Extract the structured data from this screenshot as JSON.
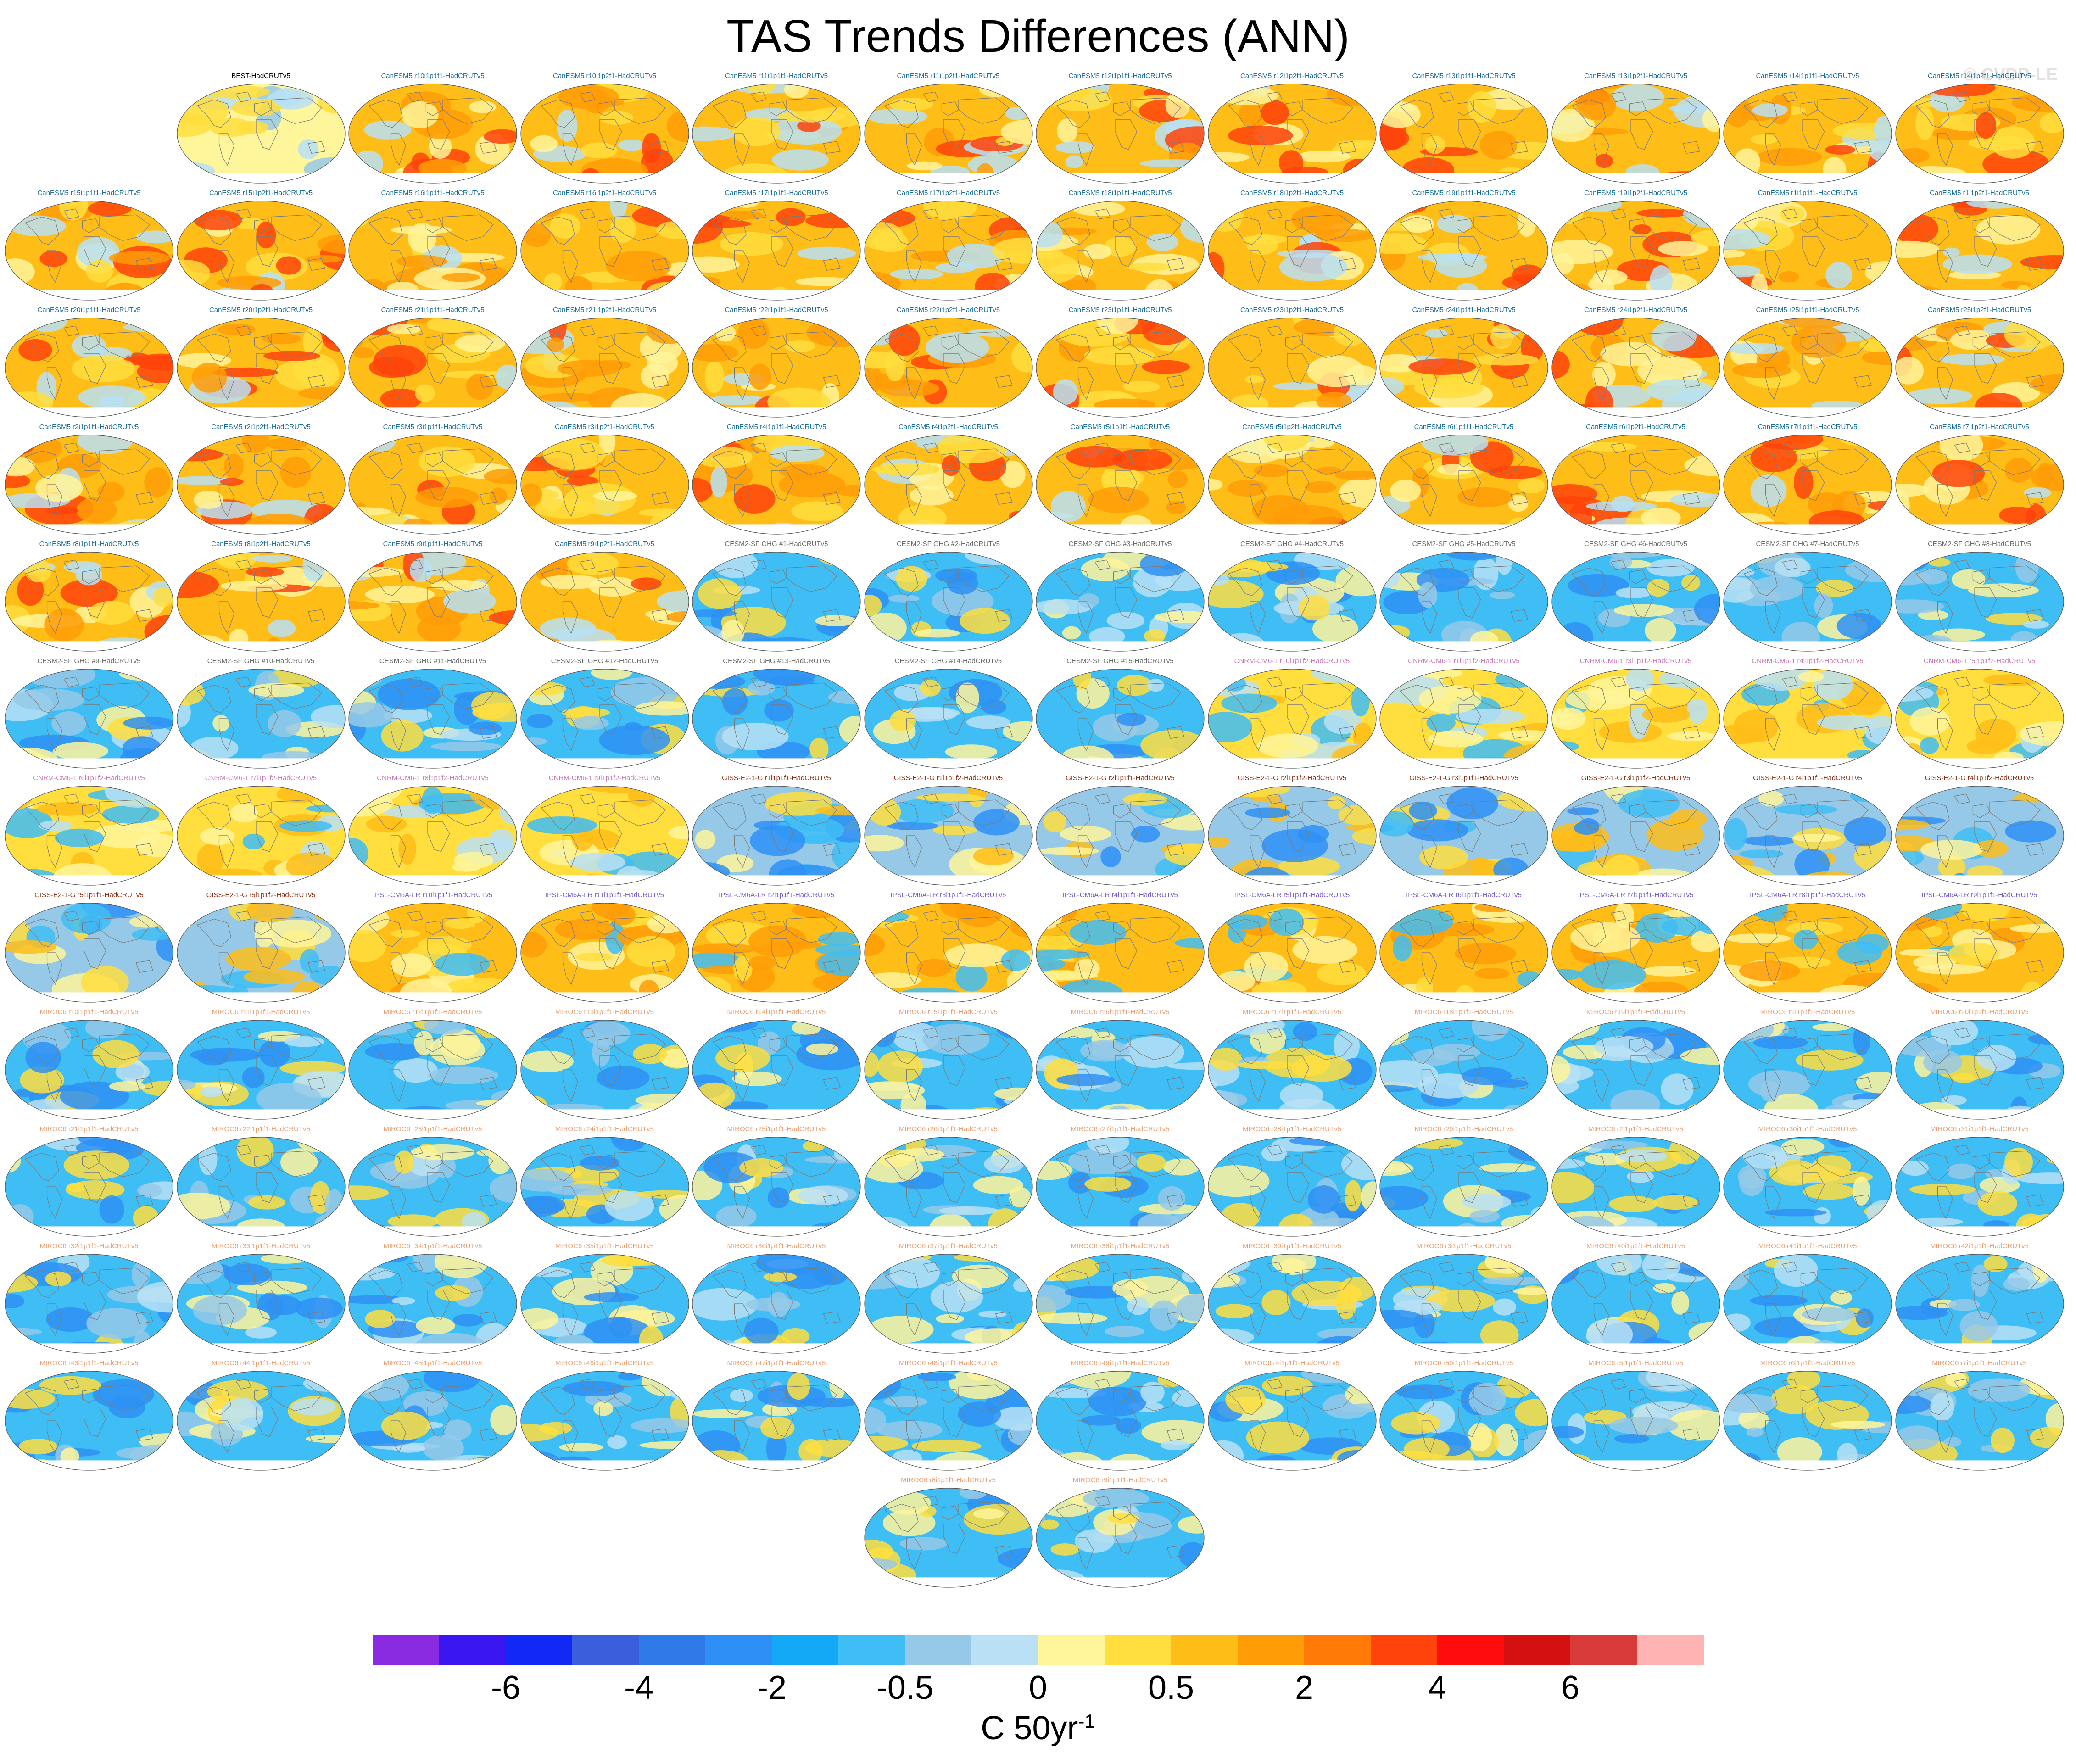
{
  "title": "TAS Trends Differences (ANN)",
  "watermark": "© CVDP-LE",
  "units": {
    "main": "C 50yr",
    "superscript": "-1"
  },
  "chart_data": {
    "type": "heatmap",
    "title": "TAS Trends Differences (ANN)",
    "projection": "global robinson map panels",
    "colorbar": {
      "colors": [
        "#8a2be2",
        "#3a16f0",
        "#1228f5",
        "#3b5fdc",
        "#2f7ae8",
        "#2e90f5",
        "#13a9f7",
        "#3fbdf5",
        "#96c9e8",
        "#b9e0f4",
        "#fff59a",
        "#ffde3e",
        "#ffbd18",
        "#ff9c06",
        "#ff7a06",
        "#ff430a",
        "#ff0c0c",
        "#d41010",
        "#d83a3a",
        "#ffb3b3"
      ],
      "tick_labels": [
        "-6",
        "-4",
        "-2",
        "-0.5",
        "0",
        "0.5",
        "2",
        "4",
        "6"
      ],
      "units": "C 50yr-1"
    },
    "panels": [
      {
        "label": "BEST-HadCRUTv5",
        "group": "best"
      },
      {
        "label": "CanESM5 r10i1p1f1-HadCRUTv5",
        "group": "canesm"
      },
      {
        "label": "CanESM5 r10i1p2f1-HadCRUTv5",
        "group": "canesm"
      },
      {
        "label": "CanESM5 r11i1p1f1-HadCRUTv5",
        "group": "canesm"
      },
      {
        "label": "CanESM5 r11i1p2f1-HadCRUTv5",
        "group": "canesm"
      },
      {
        "label": "CanESM5 r12i1p1f1-HadCRUTv5",
        "group": "canesm"
      },
      {
        "label": "CanESM5 r12i1p2f1-HadCRUTv5",
        "group": "canesm"
      },
      {
        "label": "CanESM5 r13i1p1f1-HadCRUTv5",
        "group": "canesm"
      },
      {
        "label": "CanESM5 r13i1p2f1-HadCRUTv5",
        "group": "canesm"
      },
      {
        "label": "CanESM5 r14i1p1f1-HadCRUTv5",
        "group": "canesm"
      },
      {
        "label": "CanESM5 r14i1p2f1-HadCRUTv5",
        "group": "canesm"
      },
      {
        "label": "CanESM5 r15i1p1f1-HadCRUTv5",
        "group": "canesm"
      },
      {
        "label": "CanESM5 r15i1p2f1-HadCRUTv5",
        "group": "canesm"
      },
      {
        "label": "CanESM5 r16i1p1f1-HadCRUTv5",
        "group": "canesm"
      },
      {
        "label": "CanESM5 r16i1p2f1-HadCRUTv5",
        "group": "canesm"
      },
      {
        "label": "CanESM5 r17i1p1f1-HadCRUTv5",
        "group": "canesm"
      },
      {
        "label": "CanESM5 r17i1p2f1-HadCRUTv5",
        "group": "canesm"
      },
      {
        "label": "CanESM5 r18i1p1f1-HadCRUTv5",
        "group": "canesm"
      },
      {
        "label": "CanESM5 r18i1p2f1-HadCRUTv5",
        "group": "canesm"
      },
      {
        "label": "CanESM5 r19i1p1f1-HadCRUTv5",
        "group": "canesm"
      },
      {
        "label": "CanESM5 r19i1p2f1-HadCRUTv5",
        "group": "canesm"
      },
      {
        "label": "CanESM5 r1i1p1f1-HadCRUTv5",
        "group": "canesm"
      },
      {
        "label": "CanESM5 r1i1p2f1-HadCRUTv5",
        "group": "canesm"
      },
      {
        "label": "CanESM5 r20i1p1f1-HadCRUTv5",
        "group": "canesm"
      },
      {
        "label": "CanESM5 r20i1p2f1-HadCRUTv5",
        "group": "canesm"
      },
      {
        "label": "CanESM5 r21i1p1f1-HadCRUTv5",
        "group": "canesm"
      },
      {
        "label": "CanESM5 r21i1p2f1-HadCRUTv5",
        "group": "canesm"
      },
      {
        "label": "CanESM5 r22i1p1f1-HadCRUTv5",
        "group": "canesm"
      },
      {
        "label": "CanESM5 r22i1p2f1-HadCRUTv5",
        "group": "canesm"
      },
      {
        "label": "CanESM5 r23i1p1f1-HadCRUTv5",
        "group": "canesm"
      },
      {
        "label": "CanESM5 r23i1p2f1-HadCRUTv5",
        "group": "canesm"
      },
      {
        "label": "CanESM5 r24i1p1f1-HadCRUTv5",
        "group": "canesm"
      },
      {
        "label": "CanESM5 r24i1p2f1-HadCRUTv5",
        "group": "canesm"
      },
      {
        "label": "CanESM5 r25i1p1f1-HadCRUTv5",
        "group": "canesm"
      },
      {
        "label": "CanESM5 r25i1p2f1-HadCRUTv5",
        "group": "canesm"
      },
      {
        "label": "CanESM5 r2i1p1f1-HadCRUTv5",
        "group": "canesm"
      },
      {
        "label": "CanESM5 r2i1p2f1-HadCRUTv5",
        "group": "canesm"
      },
      {
        "label": "CanESM5 r3i1p1f1-HadCRUTv5",
        "group": "canesm"
      },
      {
        "label": "CanESM5 r3i1p2f1-HadCRUTv5",
        "group": "canesm"
      },
      {
        "label": "CanESM5 r4i1p1f1-HadCRUTv5",
        "group": "canesm"
      },
      {
        "label": "CanESM5 r4i1p2f1-HadCRUTv5",
        "group": "canesm"
      },
      {
        "label": "CanESM5 r5i1p1f1-HadCRUTv5",
        "group": "canesm"
      },
      {
        "label": "CanESM5 r5i1p2f1-HadCRUTv5",
        "group": "canesm"
      },
      {
        "label": "CanESM5 r6i1p1f1-HadCRUTv5",
        "group": "canesm"
      },
      {
        "label": "CanESM5 r6i1p2f1-HadCRUTv5",
        "group": "canesm"
      },
      {
        "label": "CanESM5 r7i1p1f1-HadCRUTv5",
        "group": "canesm"
      },
      {
        "label": "CanESM5 r7i1p2f1-HadCRUTv5",
        "group": "canesm"
      },
      {
        "label": "CanESM5 r8i1p1f1-HadCRUTv5",
        "group": "canesm"
      },
      {
        "label": "CanESM5 r8i1p2f1-HadCRUTv5",
        "group": "canesm"
      },
      {
        "label": "CanESM5 r9i1p1f1-HadCRUTv5",
        "group": "canesm"
      },
      {
        "label": "CanESM5 r9i1p2f1-HadCRUTv5",
        "group": "canesm"
      },
      {
        "label": "CESM2-SF GHG #1-HadCRUTv5",
        "group": "cesm"
      },
      {
        "label": "CESM2-SF GHG #2-HadCRUTv5",
        "group": "cesm"
      },
      {
        "label": "CESM2-SF GHG #3-HadCRUTv5",
        "group": "cesm"
      },
      {
        "label": "CESM2-SF GHG #4-HadCRUTv5",
        "group": "cesm"
      },
      {
        "label": "CESM2-SF GHG #5-HadCRUTv5",
        "group": "cesm"
      },
      {
        "label": "CESM2-SF GHG #6-HadCRUTv5",
        "group": "cesm"
      },
      {
        "label": "CESM2-SF GHG #7-HadCRUTv5",
        "group": "cesm"
      },
      {
        "label": "CESM2-SF GHG #8-HadCRUTv5",
        "group": "cesm"
      },
      {
        "label": "CESM2-SF GHG #9-HadCRUTv5",
        "group": "cesm"
      },
      {
        "label": "CESM2-SF GHG #10-HadCRUTv5",
        "group": "cesm"
      },
      {
        "label": "CESM2-SF GHG #11-HadCRUTv5",
        "group": "cesm"
      },
      {
        "label": "CESM2-SF GHG #12-HadCRUTv5",
        "group": "cesm"
      },
      {
        "label": "CESM2-SF GHG #13-HadCRUTv5",
        "group": "cesm"
      },
      {
        "label": "CESM2-SF GHG #14-HadCRUTv5",
        "group": "cesm"
      },
      {
        "label": "CESM2-SF GHG #15-HadCRUTv5",
        "group": "cesm"
      },
      {
        "label": "CNRM-CM6-1 r10i1p1f2-HadCRUTv5",
        "group": "cnrm"
      },
      {
        "label": "CNRM-CM6-1 r1i1p1f2-HadCRUTv5",
        "group": "cnrm"
      },
      {
        "label": "CNRM-CM6-1 r3i1p1f2-HadCRUTv5",
        "group": "cnrm"
      },
      {
        "label": "CNRM-CM6-1 r4i1p1f2-HadCRUTv5",
        "group": "cnrm"
      },
      {
        "label": "CNRM-CM6-1 r5i1p1f2-HadCRUTv5",
        "group": "cnrm"
      },
      {
        "label": "CNRM-CM6-1 r6i1p1f2-HadCRUTv5",
        "group": "cnrm"
      },
      {
        "label": "CNRM-CM6-1 r7i1p1f2-HadCRUTv5",
        "group": "cnrm"
      },
      {
        "label": "CNRM-CM6-1 r8i1p1f2-HadCRUTv5",
        "group": "cnrm"
      },
      {
        "label": "CNRM-CM6-1 r9i1p1f2-HadCRUTv5",
        "group": "cnrm"
      },
      {
        "label": "GISS-E2-1-G r1i1p1f1-HadCRUTv5",
        "group": "giss"
      },
      {
        "label": "GISS-E2-1-G r1i1p1f2-HadCRUTv5",
        "group": "giss"
      },
      {
        "label": "GISS-E2-1-G r2i1p1f1-HadCRUTv5",
        "group": "giss"
      },
      {
        "label": "GISS-E2-1-G r2i1p1f2-HadCRUTv5",
        "group": "giss"
      },
      {
        "label": "GISS-E2-1-G r3i1p1f1-HadCRUTv5",
        "group": "giss"
      },
      {
        "label": "GISS-E2-1-G r3i1p1f2-HadCRUTv5",
        "group": "giss"
      },
      {
        "label": "GISS-E2-1-G r4i1p1f1-HadCRUTv5",
        "group": "giss"
      },
      {
        "label": "GISS-E2-1-G r4i1p1f2-HadCRUTv5",
        "group": "giss"
      },
      {
        "label": "GISS-E2-1-G r5i1p1f1-HadCRUTv5",
        "group": "giss"
      },
      {
        "label": "GISS-E2-1-G r5i1p1f2-HadCRUTv5",
        "group": "giss"
      },
      {
        "label": "IPSL-CM6A-LR r10i1p1f1-HadCRUTv5",
        "group": "ipsl"
      },
      {
        "label": "IPSL-CM6A-LR r11i1p1f1-HadCRUTv5",
        "group": "ipsl"
      },
      {
        "label": "IPSL-CM6A-LR r2i1p1f1-HadCRUTv5",
        "group": "ipsl"
      },
      {
        "label": "IPSL-CM6A-LR r3i1p1f1-HadCRUTv5",
        "group": "ipsl"
      },
      {
        "label": "IPSL-CM6A-LR r4i1p1f1-HadCRUTv5",
        "group": "ipsl"
      },
      {
        "label": "IPSL-CM6A-LR r5i1p1f1-HadCRUTv5",
        "group": "ipsl"
      },
      {
        "label": "IPSL-CM6A-LR r6i1p1f1-HadCRUTv5",
        "group": "ipsl"
      },
      {
        "label": "IPSL-CM6A-LR r7i1p1f1-HadCRUTv5",
        "group": "ipsl"
      },
      {
        "label": "IPSL-CM6A-LR r8i1p1f1-HadCRUTv5",
        "group": "ipsl"
      },
      {
        "label": "IPSL-CM6A-LR r9i1p1f1-HadCRUTv5",
        "group": "ipsl"
      },
      {
        "label": "MIROC6 r10i1p1f1-HadCRUTv5",
        "group": "miroc"
      },
      {
        "label": "MIROC6 r11i1p1f1-HadCRUTv5",
        "group": "miroc"
      },
      {
        "label": "MIROC6 r12i1p1f1-HadCRUTv5",
        "group": "miroc"
      },
      {
        "label": "MIROC6 r13i1p1f1-HadCRUTv5",
        "group": "miroc"
      },
      {
        "label": "MIROC6 r14i1p1f1-HadCRUTv5",
        "group": "miroc"
      },
      {
        "label": "MIROC6 r15i1p1f1-HadCRUTv5",
        "group": "miroc"
      },
      {
        "label": "MIROC6 r16i1p1f1-HadCRUTv5",
        "group": "miroc"
      },
      {
        "label": "MIROC6 r17i1p1f1-HadCRUTv5",
        "group": "miroc"
      },
      {
        "label": "MIROC6 r18i1p1f1-HadCRUTv5",
        "group": "miroc"
      },
      {
        "label": "MIROC6 r19i1p1f1-HadCRUTv5",
        "group": "miroc"
      },
      {
        "label": "MIROC6 r1i1p1f1-HadCRUTv5",
        "group": "miroc"
      },
      {
        "label": "MIROC6 r20i1p1f1-HadCRUTv5",
        "group": "miroc"
      },
      {
        "label": "MIROC6 r21i1p1f1-HadCRUTv5",
        "group": "miroc"
      },
      {
        "label": "MIROC6 r22i1p1f1-HadCRUTv5",
        "group": "miroc"
      },
      {
        "label": "MIROC6 r23i1p1f1-HadCRUTv5",
        "group": "miroc"
      },
      {
        "label": "MIROC6 r24i1p1f1-HadCRUTv5",
        "group": "miroc"
      },
      {
        "label": "MIROC6 r25i1p1f1-HadCRUTv5",
        "group": "miroc"
      },
      {
        "label": "MIROC6 r26i1p1f1-HadCRUTv5",
        "group": "miroc"
      },
      {
        "label": "MIROC6 r27i1p1f1-HadCRUTv5",
        "group": "miroc"
      },
      {
        "label": "MIROC6 r28i1p1f1-HadCRUTv5",
        "group": "miroc"
      },
      {
        "label": "MIROC6 r29i1p1f1-HadCRUTv5",
        "group": "miroc"
      },
      {
        "label": "MIROC6 r2i1p1f1-HadCRUTv5",
        "group": "miroc"
      },
      {
        "label": "MIROC6 r30i1p1f1-HadCRUTv5",
        "group": "miroc"
      },
      {
        "label": "MIROC6 r31i1p1f1-HadCRUTv5",
        "group": "miroc"
      },
      {
        "label": "MIROC6 r32i1p1f1-HadCRUTv5",
        "group": "miroc"
      },
      {
        "label": "MIROC6 r33i1p1f1-HadCRUTv5",
        "group": "miroc"
      },
      {
        "label": "MIROC6 r34i1p1f1-HadCRUTv5",
        "group": "miroc"
      },
      {
        "label": "MIROC6 r35i1p1f1-HadCRUTv5",
        "group": "miroc"
      },
      {
        "label": "MIROC6 r36i1p1f1-HadCRUTv5",
        "group": "miroc"
      },
      {
        "label": "MIROC6 r37i1p1f1-HadCRUTv5",
        "group": "miroc"
      },
      {
        "label": "MIROC6 r38i1p1f1-HadCRUTv5",
        "group": "miroc"
      },
      {
        "label": "MIROC6 r39i1p1f1-HadCRUTv5",
        "group": "miroc"
      },
      {
        "label": "MIROC6 r3i1p1f1-HadCRUTv5",
        "group": "miroc"
      },
      {
        "label": "MIROC6 r40i1p1f1-HadCRUTv5",
        "group": "miroc"
      },
      {
        "label": "MIROC6 r41i1p1f1-HadCRUTv5",
        "group": "miroc"
      },
      {
        "label": "MIROC6 r42i1p1f1-HadCRUTv5",
        "group": "miroc"
      },
      {
        "label": "MIROC6 r43i1p1f1-HadCRUTv5",
        "group": "miroc"
      },
      {
        "label": "MIROC6 r44i1p1f1-HadCRUTv5",
        "group": "miroc"
      },
      {
        "label": "MIROC6 r45i1p1f1-HadCRUTv5",
        "group": "miroc"
      },
      {
        "label": "MIROC6 r46i1p1f1-HadCRUTv5",
        "group": "miroc"
      },
      {
        "label": "MIROC6 r47i1p1f1-HadCRUTv5",
        "group": "miroc"
      },
      {
        "label": "MIROC6 r48i1p1f1-HadCRUTv5",
        "group": "miroc"
      },
      {
        "label": "MIROC6 r49i1p1f1-HadCRUTv5",
        "group": "miroc"
      },
      {
        "label": "MIROC6 r4i1p1f1-HadCRUTv5",
        "group": "miroc"
      },
      {
        "label": "MIROC6 r50i1p1f1-HadCRUTv5",
        "group": "miroc"
      },
      {
        "label": "MIROC6 r5i1p1f1-HadCRUTv5",
        "group": "miroc"
      },
      {
        "label": "MIROC6 r6i1p1f1-HadCRUTv5",
        "group": "miroc"
      },
      {
        "label": "MIROC6 r7i1p1f1-HadCRUTv5",
        "group": "miroc"
      },
      {
        "label": "MIROC6 r8i1p1f1-HadCRUTv5",
        "group": "miroc"
      },
      {
        "label": "MIROC6 r9i1p1f1-HadCRUTv5",
        "group": "miroc"
      }
    ],
    "groups": {
      "best": {
        "title_color": "#000000",
        "base": "#fff59a",
        "alt": [
          "#b9e0f4",
          "#96c9e8",
          "#ffde3e"
        ]
      },
      "canesm": {
        "title_color": "#1a6e9a",
        "base": "#ffbd18",
        "alt": [
          "#ff9c06",
          "#ffde3e",
          "#fff59a",
          "#b9e0f4",
          "#ff430a"
        ]
      },
      "cesm": {
        "title_color": "#6b6b6b",
        "base": "#3fbdf5",
        "alt": [
          "#96c9e8",
          "#fff59a",
          "#ffde3e",
          "#2e90f5",
          "#b9e0f4"
        ]
      },
      "cnrm": {
        "title_color": "#c87ab4",
        "base": "#ffde3e",
        "alt": [
          "#ffbd18",
          "#b9e0f4",
          "#3fbdf5",
          "#fff59a"
        ]
      },
      "giss": {
        "title_color": "#8b2e12",
        "base": "#96c9e8",
        "alt": [
          "#3fbdf5",
          "#fff59a",
          "#ffde3e",
          "#2e90f5",
          "#ffbd18"
        ]
      },
      "ipsl": {
        "title_color": "#7a5ccc",
        "base": "#ffbd18",
        "alt": [
          "#ffde3e",
          "#ff9c06",
          "#3fbdf5",
          "#fff59a"
        ]
      },
      "miroc": {
        "title_color": "#e8a070",
        "base": "#3fbdf5",
        "alt": [
          "#96c9e8",
          "#fff59a",
          "#ffde3e",
          "#2e90f5",
          "#b9e0f4"
        ]
      }
    }
  }
}
